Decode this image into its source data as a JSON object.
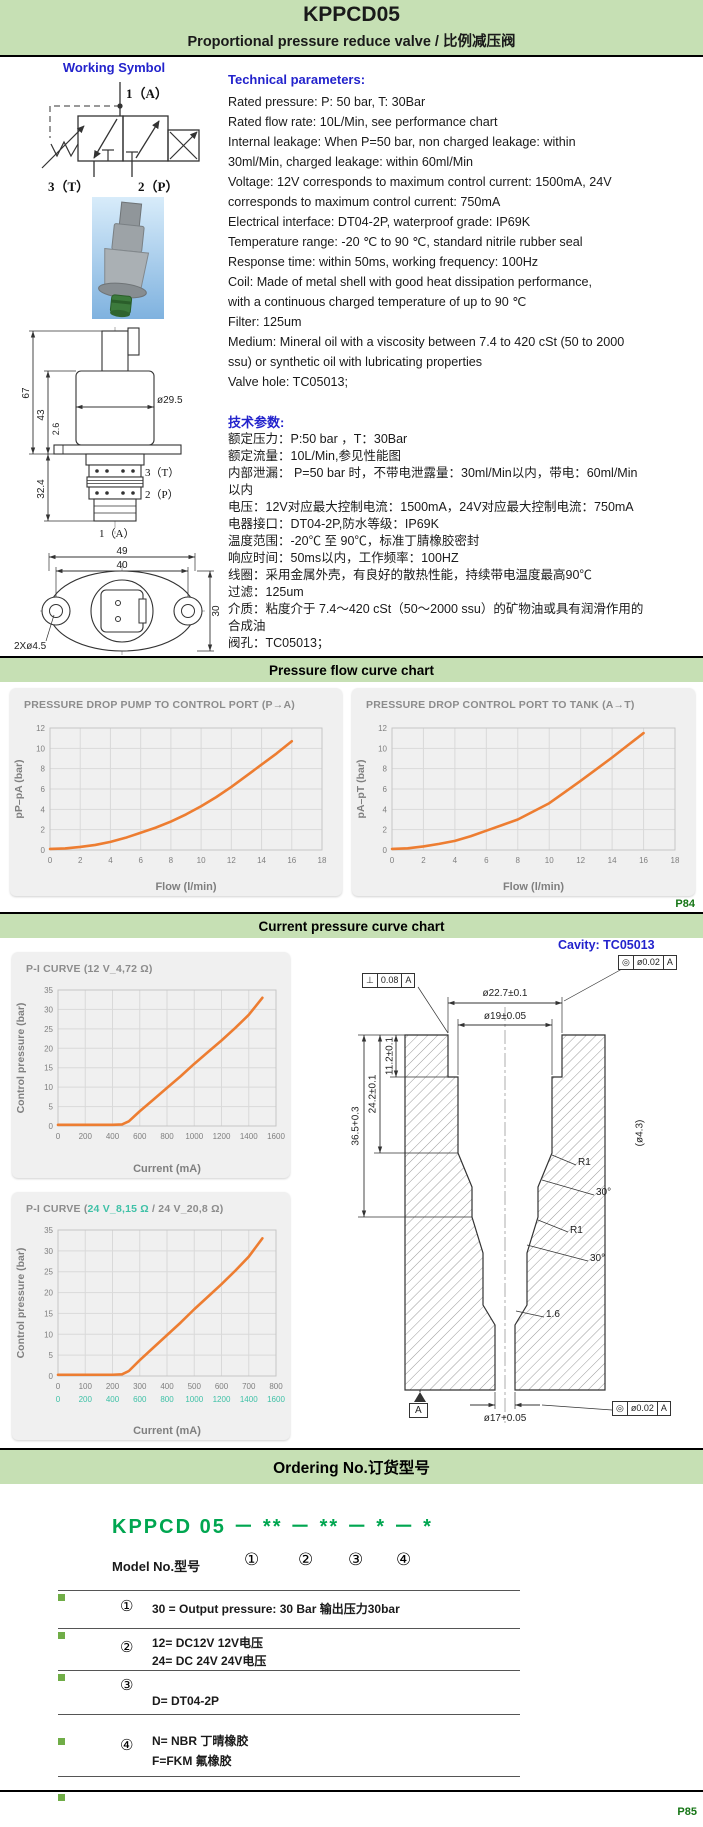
{
  "colors": {
    "band_green": "#c6e0b4",
    "heading_blue": "#2323cc",
    "curve_orange": "#ed7d31",
    "teal": "#3fc1a7",
    "page_label_green": "#157515",
    "model_green": "#00a650",
    "bullet_green": "#70ad47"
  },
  "header": {
    "title": "KPPCD05",
    "subtitle": "Proportional pressure reduce valve / 比例减压阀"
  },
  "working_symbol": {
    "heading": "Working Symbol",
    "port_top": "1（A）",
    "port_left": "3（T）",
    "port_bottom": "2（P）"
  },
  "tech_en": {
    "heading": "Technical parameters:",
    "lines": [
      "Rated pressure: P: 50 bar, T: 30Bar",
      "Rated flow rate: 10L/Min, see performance chart",
      "Internal leakage: When P=50 bar, non charged leakage: within",
      "30ml/Min, charged leakage: within 60ml/Min",
      "Voltage: 12V corresponds to maximum control current: 1500mA, 24V",
      "corresponds to maximum control current: 750mA",
      "Electrical interface: DT04-2P, waterproof grade: IP69K",
      "Temperature range: -20 ℃ to 90 ℃, standard nitrile rubber seal",
      "Response time: within 50ms, working frequency: 100Hz",
      "Coil: Made of metal shell with good heat dissipation performance,",
      "with a continuous charged temperature of up to 90 ℃",
      "Filter: 125um",
      "Medium: Mineral oil with a viscosity between 7.4 to 420 cSt (50 to 2000",
      "ssu) or synthetic oil with lubricating properties",
      "Valve hole: TC05013;"
    ]
  },
  "tech_zh": {
    "heading": "技术参数:",
    "lines": [
      "额定压力：P:50 bar ，T：30Bar",
      "额定流量：10L/Min,参见性能图",
      "内部泄漏： P=50 bar 时，不带电泄露量：30ml/Min以内，带电：60ml/Min",
      "以内",
      "电压：12V对应最大控制电流：1500mA，24V对应最大控制电流：750mA",
      "电器接口：DT04-2P,防水等级：IP69K",
      "温度范围：-20℃ 至 90℃，标准丁腈橡胶密封",
      "响应时间：50ms以内，工作频率：100HZ",
      "线圈：采用金属外壳，有良好的散热性能，持续带电温度最高90℃",
      "过滤：125um",
      "介质：粘度介于 7.4～420 cSt（50～2000 ssu）的矿物油或具有润滑作用的",
      "合成油",
      "阀孔：TC05013；"
    ]
  },
  "side_view": {
    "dim_67": "67",
    "dim_43": "43",
    "dim_26": "2.6",
    "dim_324": "32.4",
    "dim_dia": "ø29.5",
    "port_t": "3（T）",
    "port_p": "2（P）",
    "port_a": "1（A）"
  },
  "bottom_view": {
    "dim_49": "49",
    "dim_40": "40",
    "dim_30": "30",
    "dim_holes": "2Xø4.5"
  },
  "sections": {
    "pressure_flow": "Pressure flow curve chart",
    "current_pressure": "Current pressure curve chart",
    "ordering": "Ordering No.订货型号"
  },
  "page_labels": {
    "p84": "P84",
    "p85": "P85"
  },
  "cavity_label": "Cavity: TC05013",
  "chart_data": [
    {
      "type": "line",
      "title_parts": [
        {
          "text": "PRESSURE DROP PUMP TO CONTROL PORT (P→A)",
          "color": "#8c8c8c"
        }
      ],
      "xlabel": "Flow (l/min)",
      "ylabel": "pP–pA (bar)",
      "xlim": [
        0,
        18
      ],
      "ylim": [
        0,
        12
      ],
      "xtick_step": 2,
      "ytick_step": 2,
      "grid": true,
      "x": [
        0,
        1,
        2,
        3,
        4,
        5,
        6,
        7,
        8,
        9,
        10,
        11,
        12,
        13,
        14,
        15,
        16
      ],
      "y": [
        0.1,
        0.15,
        0.3,
        0.5,
        0.8,
        1.2,
        1.7,
        2.2,
        2.8,
        3.5,
        4.3,
        5.2,
        6.2,
        7.3,
        8.4,
        9.5,
        10.7
      ],
      "color": "#ed7d31",
      "ml": 40,
      "mr": 20,
      "mt": 40,
      "mb": 46
    },
    {
      "type": "line",
      "title_parts": [
        {
          "text": "PRESSURE DROP CONTROL PORT TO TANK (A→T)",
          "color": "#8c8c8c"
        }
      ],
      "xlabel": "Flow (l/min)",
      "ylabel": "pA–pT (bar)",
      "xlim": [
        0,
        18
      ],
      "ylim": [
        0,
        12
      ],
      "xtick_step": 2,
      "ytick_step": 2,
      "grid": true,
      "x": [
        0,
        1,
        2,
        3,
        4,
        5,
        6,
        7,
        8,
        9,
        10,
        11,
        12,
        13,
        14,
        15,
        16
      ],
      "y": [
        0.1,
        0.17,
        0.35,
        0.6,
        0.9,
        1.35,
        1.9,
        2.45,
        3.0,
        3.8,
        4.6,
        5.7,
        6.8,
        7.95,
        9.1,
        10.3,
        11.5
      ],
      "color": "#ed7d31",
      "ml": 40,
      "mr": 20,
      "mt": 40,
      "mb": 46
    },
    {
      "type": "line",
      "title_parts": [
        {
          "text": "P-I CURVE (12 V_4,72 Ω)",
          "color": "#8c8c8c"
        }
      ],
      "xlabel": "Current (mA)",
      "ylabel": "Control pressure (bar)",
      "xlim": [
        0,
        1600
      ],
      "ylim": [
        0,
        35
      ],
      "xtick_step": 200,
      "ytick_step": 5,
      "grid": true,
      "x": [
        0,
        100,
        200,
        300,
        400,
        470,
        520,
        600,
        700,
        800,
        900,
        1000,
        1100,
        1200,
        1300,
        1400,
        1500
      ],
      "y": [
        0.3,
        0.3,
        0.3,
        0.3,
        0.3,
        0.4,
        1.2,
        3.8,
        6.8,
        9.8,
        12.8,
        16.0,
        19.0,
        22.0,
        25.2,
        28.6,
        33.0
      ],
      "color": "#ed7d31",
      "ml": 46,
      "mr": 14,
      "mt": 38,
      "mb": 52
    },
    {
      "type": "line",
      "title_parts": [
        {
          "text": "P-I CURVE (",
          "color": "#8c8c8c"
        },
        {
          "text": "24 V_8,15 Ω",
          "color": "#3fc1a7"
        },
        {
          "text": " / 24 V_20,8 Ω)",
          "color": "#8c8c8c"
        }
      ],
      "xlabel": "Current (mA)",
      "ylabel": "Control pressure (bar)",
      "xlim": [
        0,
        800
      ],
      "ylim": [
        0,
        35
      ],
      "xtick_step": 100,
      "ytick_step": 5,
      "grid": true,
      "xticks2": [
        "0",
        "200",
        "400",
        "600",
        "800",
        "1000",
        "1200",
        "1400",
        "1600"
      ],
      "x": [
        0,
        50,
        100,
        150,
        200,
        235,
        260,
        300,
        350,
        400,
        450,
        500,
        550,
        600,
        650,
        700,
        750
      ],
      "y": [
        0.3,
        0.3,
        0.3,
        0.3,
        0.3,
        0.4,
        1.2,
        3.8,
        6.8,
        9.8,
        12.8,
        16.0,
        19.0,
        22.0,
        25.2,
        28.6,
        33.0
      ],
      "color": "#ed7d31",
      "ml": 46,
      "mr": 14,
      "mt": 38,
      "mb": 64
    }
  ],
  "cavity": {
    "dim_top": "ø22.7±0.1",
    "dim_19": "ø19±0.05",
    "dim_112": "11.2±0.1",
    "dim_242": "24.2±0.1",
    "dim_365": "36.5+0.3",
    "dim_side": "(ø4.3)",
    "r1_a": "R1",
    "r1_b": "R1",
    "ang_a": "30°",
    "ang_b": "30°",
    "chamfer": "1.6",
    "dim_bottom": "ø17+0.05",
    "datum": "A",
    "fcf_top_left": [
      "⊥",
      "0.08",
      "A"
    ],
    "fcf_top_right": [
      "◎",
      "ø0.02",
      "A"
    ],
    "fcf_bottom": [
      "◎",
      "ø0.02",
      "A"
    ]
  },
  "ordering": {
    "model_line": "KPPCD 05 － ** － ** － * － *",
    "model_no_label": "Model No.型号",
    "positions": [
      "①",
      "②",
      "③",
      "④"
    ],
    "rows": [
      {
        "num": "①",
        "lines": [
          "30 = Output pressure: 30 Bar 输出压力30bar"
        ]
      },
      {
        "num": "②",
        "lines": [
          "12= DC12V 12V电压",
          "24= DC 24V 24V电压"
        ]
      },
      {
        "num": "③",
        "lines": [
          "D= DT04-2P"
        ]
      },
      {
        "num": "④",
        "lines": [
          "N= NBR 丁晴橡胶",
          "F=FKM 氟橡胶"
        ]
      }
    ]
  }
}
